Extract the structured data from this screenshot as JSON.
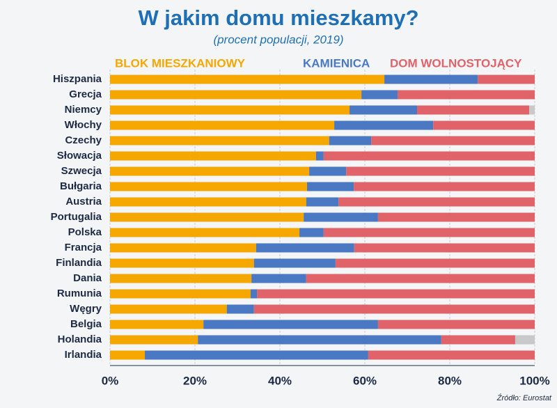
{
  "chart_data": {
    "type": "stacked-bar-horizontal",
    "title": "W jakim domu mieszkamy?",
    "subtitle": "(procent populacji, 2019)",
    "source": "Źródło: Eurostat",
    "categories": [
      "Hiszpania",
      "Grecja",
      "Niemcy",
      "Włochy",
      "Czechy",
      "Słowacja",
      "Szwecja",
      "Bułgaria",
      "Austria",
      "Portugalia",
      "Polska",
      "Francja",
      "Finlandia",
      "Dania",
      "Rumunia",
      "Węgry",
      "Belgia",
      "Holandia",
      "Irlandia"
    ],
    "series": [
      {
        "name": "BLOK MIESZKANIOWY",
        "color": "#f5a700",
        "values": [
          64.6,
          59.2,
          56.4,
          52.8,
          51.6,
          48.5,
          46.9,
          46.4,
          46.2,
          45.6,
          44.6,
          34.4,
          33.9,
          33.3,
          33.1,
          27.5,
          22.0,
          20.7,
          8.2
        ]
      },
      {
        "name": "KAMIENICA",
        "color": "#4a78c2",
        "values": [
          22.0,
          8.5,
          15.9,
          23.3,
          9.9,
          1.8,
          8.7,
          11.0,
          7.6,
          17.5,
          5.7,
          23.1,
          19.2,
          12.9,
          1.5,
          6.4,
          41.1,
          57.3,
          52.6
        ]
      },
      {
        "name": "DOM WOLNOSTOJĄCY",
        "color": "#e0636a",
        "values": [
          13.4,
          32.3,
          26.4,
          23.9,
          38.5,
          49.7,
          44.4,
          42.6,
          46.2,
          36.9,
          49.7,
          42.5,
          46.9,
          53.8,
          65.4,
          66.1,
          36.9,
          17.4,
          39.2
        ]
      },
      {
        "color": "#c8c8c8",
        "values": [
          null,
          null,
          1.3,
          null,
          null,
          null,
          null,
          null,
          null,
          null,
          null,
          null,
          null,
          null,
          null,
          null,
          null,
          4.6,
          null
        ]
      }
    ],
    "xlim": [
      0,
      100
    ],
    "xticks": [
      {
        "value": 0,
        "label": "0%"
      },
      {
        "value": 20,
        "label": "20%"
      },
      {
        "value": 40,
        "label": "40%"
      },
      {
        "value": 60,
        "label": "60%"
      },
      {
        "value": 80,
        "label": "80%"
      },
      {
        "value": 100,
        "label": "100%"
      }
    ],
    "grid": true
  }
}
